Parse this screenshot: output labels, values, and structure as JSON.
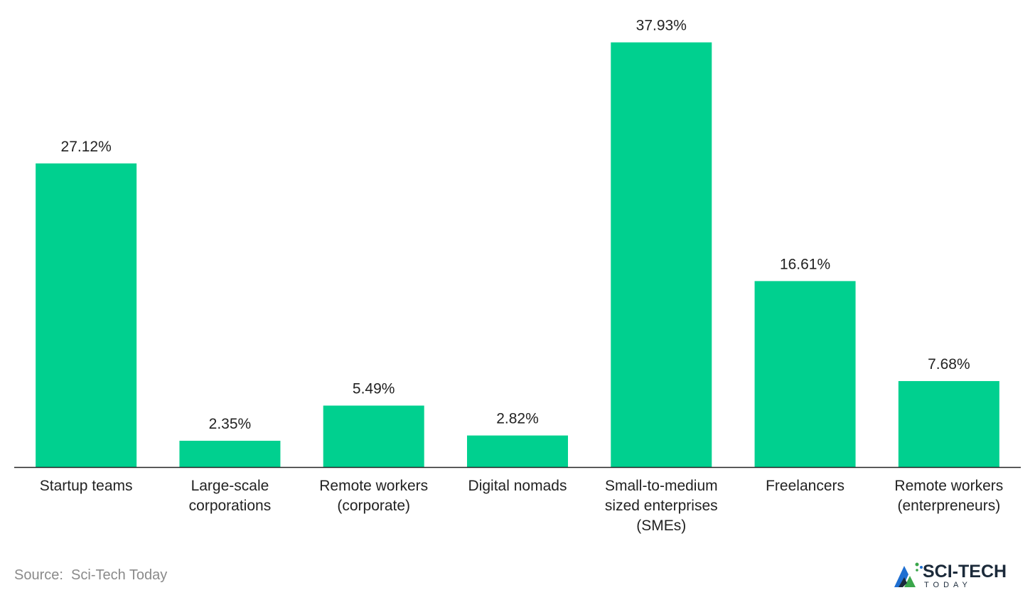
{
  "chart_data": {
    "type": "bar",
    "title": "",
    "xlabel": "",
    "ylabel": "",
    "ylim": [
      0,
      40
    ],
    "grid": false,
    "bar_color": "#00d08f",
    "categories": [
      [
        "Startup teams"
      ],
      [
        "Large-scale",
        "corporations"
      ],
      [
        "Remote workers",
        "(corporate)"
      ],
      [
        "Digital nomads"
      ],
      [
        "Small-to-medium",
        "sized enterprises",
        "(SMEs)"
      ],
      [
        "Freelancers"
      ],
      [
        "Remote workers",
        "(enterpreneurs)"
      ]
    ],
    "values": [
      27.12,
      2.35,
      5.49,
      2.82,
      37.93,
      16.61,
      7.68
    ],
    "value_labels": [
      "27.12%",
      "2.35%",
      "5.49%",
      "2.82%",
      "37.93%",
      "16.61%",
      "7.68%"
    ]
  },
  "footer": {
    "source_text": "Source:  Sci-Tech Today"
  },
  "logo": {
    "brand_text": "SCI-TECH",
    "sub_text": "TODAY",
    "colors": {
      "text": "#1b2a3a",
      "accent_blue": "#1f6fd1",
      "accent_green": "#3aa64a"
    }
  }
}
